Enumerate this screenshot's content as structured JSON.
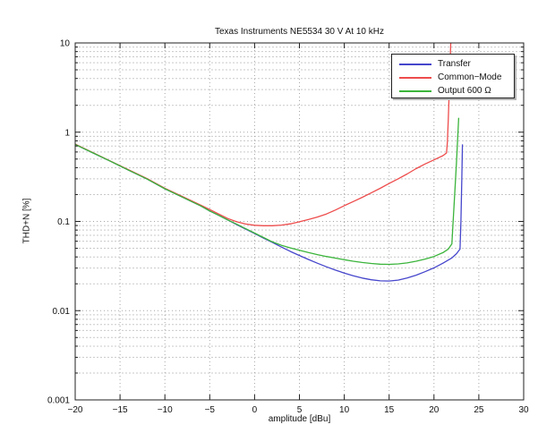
{
  "chart_data": {
    "type": "line",
    "title": "Texas Instruments NE5534 30 V At 10 kHz",
    "xlabel": "amplitude [dBu]",
    "ylabel": "THD+N [%]",
    "grid": true,
    "background": "#ffffff",
    "axis_color": "#222222",
    "grid_major_color": "#a6a6a6",
    "grid_minor_color": "#c9c9c9",
    "x_axis": {
      "scale": "linear",
      "min": -20,
      "max": 30,
      "tick_values": [
        -20,
        -15,
        -10,
        -5,
        0,
        5,
        10,
        15,
        20,
        25,
        30
      ],
      "tick_labels": [
        "−20",
        "−15",
        "−10",
        "−5",
        "0",
        "5",
        "10",
        "15",
        "20",
        "25",
        "30"
      ]
    },
    "y_axis": {
      "scale": "log",
      "min": 0.001,
      "max": 10,
      "tick_values": [
        10,
        1,
        0.1,
        0.01,
        0.001
      ],
      "tick_labels": [
        "10",
        "1",
        "0.1",
        "0.01",
        "0.001"
      ]
    },
    "legend": {
      "position": "top-right",
      "entries": [
        "Transfer",
        "Common−Mode",
        "Output 600 Ω"
      ]
    },
    "series": [
      {
        "name": "Transfer",
        "color": "#4646cc",
        "points": [
          [
            -20,
            0.73
          ],
          [
            -18,
            0.585
          ],
          [
            -16,
            0.468
          ],
          [
            -14,
            0.374
          ],
          [
            -12,
            0.299
          ],
          [
            -10,
            0.232
          ],
          [
            -8,
            0.186
          ],
          [
            -6,
            0.149
          ],
          [
            -5,
            0.131
          ],
          [
            -4,
            0.117
          ],
          [
            -3,
            0.104
          ],
          [
            -2,
            0.092
          ],
          [
            -1,
            0.082
          ],
          [
            0,
            0.073
          ],
          [
            1,
            0.065
          ],
          [
            2,
            0.058
          ],
          [
            3,
            0.0515
          ],
          [
            4,
            0.046
          ],
          [
            5,
            0.0415
          ],
          [
            6,
            0.0375
          ],
          [
            7,
            0.034
          ],
          [
            8,
            0.031
          ],
          [
            9,
            0.0285
          ],
          [
            10,
            0.0264
          ],
          [
            11,
            0.0246
          ],
          [
            12,
            0.0232
          ],
          [
            13,
            0.0222
          ],
          [
            14,
            0.0216
          ],
          [
            15,
            0.0215
          ],
          [
            16,
            0.022
          ],
          [
            17,
            0.0232
          ],
          [
            18,
            0.025
          ],
          [
            19,
            0.0273
          ],
          [
            20,
            0.0302
          ],
          [
            21,
            0.034
          ],
          [
            22,
            0.039
          ],
          [
            22.5,
            0.0435
          ],
          [
            22.9,
            0.049
          ],
          [
            23.0,
            0.1
          ],
          [
            23.1,
            0.3
          ],
          [
            23.17,
            0.73
          ]
        ]
      },
      {
        "name": "Common−Mode",
        "color": "#ee4c4c",
        "points": [
          [
            -20,
            0.735
          ],
          [
            -18,
            0.589
          ],
          [
            -16,
            0.471
          ],
          [
            -14,
            0.377
          ],
          [
            -12,
            0.302
          ],
          [
            -10,
            0.235
          ],
          [
            -8,
            0.189
          ],
          [
            -6,
            0.152
          ],
          [
            -5,
            0.136
          ],
          [
            -4,
            0.121
          ],
          [
            -3,
            0.108
          ],
          [
            -2,
            0.099
          ],
          [
            -1,
            0.0935
          ],
          [
            0,
            0.0905
          ],
          [
            1,
            0.0895
          ],
          [
            2,
            0.0895
          ],
          [
            3,
            0.091
          ],
          [
            4,
            0.094
          ],
          [
            5,
            0.099
          ],
          [
            6,
            0.105
          ],
          [
            7,
            0.112
          ],
          [
            8,
            0.121
          ],
          [
            9,
            0.134
          ],
          [
            10,
            0.15
          ],
          [
            11,
            0.167
          ],
          [
            12,
            0.186
          ],
          [
            13,
            0.209
          ],
          [
            14,
            0.235
          ],
          [
            15,
            0.266
          ],
          [
            16,
            0.3
          ],
          [
            17,
            0.34
          ],
          [
            18,
            0.39
          ],
          [
            19,
            0.44
          ],
          [
            20,
            0.49
          ],
          [
            21,
            0.545
          ],
          [
            21.4,
            0.585
          ],
          [
            21.5,
            0.78
          ],
          [
            21.6,
            1.4
          ],
          [
            21.7,
            2.8
          ],
          [
            21.8,
            5.8
          ],
          [
            21.9,
            12
          ]
        ]
      },
      {
        "name": "Output 600 Ω",
        "color": "#3bb43b",
        "points": [
          [
            -20,
            0.73
          ],
          [
            -18,
            0.585
          ],
          [
            -16,
            0.468
          ],
          [
            -14,
            0.374
          ],
          [
            -12,
            0.299
          ],
          [
            -10,
            0.232
          ],
          [
            -8,
            0.186
          ],
          [
            -6,
            0.149
          ],
          [
            -5,
            0.131
          ],
          [
            -4,
            0.117
          ],
          [
            -3,
            0.104
          ],
          [
            -2,
            0.093
          ],
          [
            -1,
            0.083
          ],
          [
            0,
            0.074
          ],
          [
            1,
            0.066
          ],
          [
            2,
            0.059
          ],
          [
            3,
            0.054
          ],
          [
            4,
            0.0505
          ],
          [
            5,
            0.0475
          ],
          [
            6,
            0.0448
          ],
          [
            7,
            0.0425
          ],
          [
            8,
            0.0405
          ],
          [
            9,
            0.0388
          ],
          [
            10,
            0.0372
          ],
          [
            11,
            0.0358
          ],
          [
            12,
            0.0347
          ],
          [
            13,
            0.0338
          ],
          [
            14,
            0.0332
          ],
          [
            15,
            0.033
          ],
          [
            16,
            0.0334
          ],
          [
            17,
            0.0343
          ],
          [
            18,
            0.0358
          ],
          [
            19,
            0.0378
          ],
          [
            20,
            0.0405
          ],
          [
            21,
            0.0447
          ],
          [
            21.6,
            0.049
          ],
          [
            22.0,
            0.056
          ],
          [
            22.1,
            0.085
          ],
          [
            22.3,
            0.19
          ],
          [
            22.5,
            0.45
          ],
          [
            22.65,
            0.9
          ],
          [
            22.75,
            1.45
          ]
        ]
      }
    ]
  }
}
